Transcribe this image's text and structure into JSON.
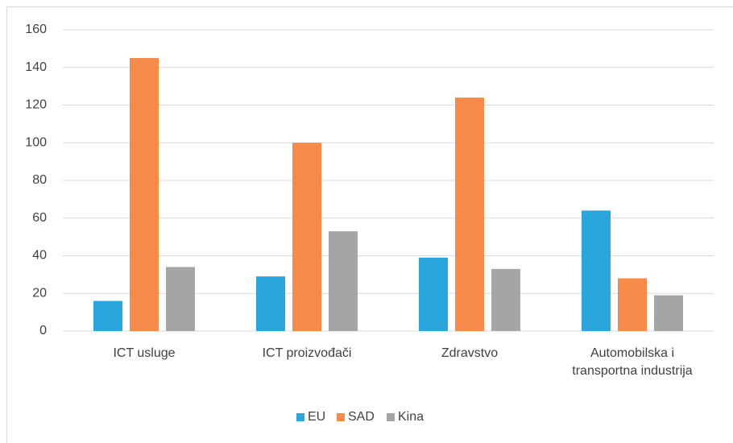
{
  "chart_data": {
    "type": "bar",
    "categories": [
      "ICT usluge",
      "ICT proizvođači",
      "Zdravstvo",
      "Automobilska i\ntransportna industrija"
    ],
    "series": [
      {
        "name": "EU",
        "color": "#2aa6dd",
        "values": [
          16,
          29,
          39,
          64
        ]
      },
      {
        "name": "SAD",
        "color": "#f58a4b",
        "values": [
          145,
          100,
          124,
          28
        ]
      },
      {
        "name": "Kina",
        "color": "#a5a5a5",
        "values": [
          34,
          53,
          33,
          19
        ]
      }
    ],
    "ylim": [
      0,
      160
    ],
    "yticks": [
      0,
      20,
      40,
      60,
      80,
      100,
      120,
      140,
      160
    ],
    "grid": true,
    "legend": "bottom"
  }
}
